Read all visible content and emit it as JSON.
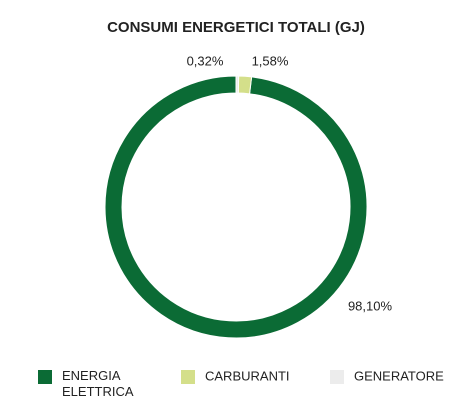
{
  "chart_data": {
    "type": "pie",
    "title": "CONSUMI ENERGETICI TOTALI (GJ)",
    "categories": [
      "ENERGIA ELETTRICA",
      "CARBURANTI",
      "GENERATORE"
    ],
    "values": [
      98.1,
      1.58,
      0.32
    ],
    "value_labels": [
      "98,10%",
      "1,58%",
      "0,32%"
    ],
    "colors": [
      "#0b6b35",
      "#d4df8a",
      "#ececec"
    ],
    "donut": true
  }
}
